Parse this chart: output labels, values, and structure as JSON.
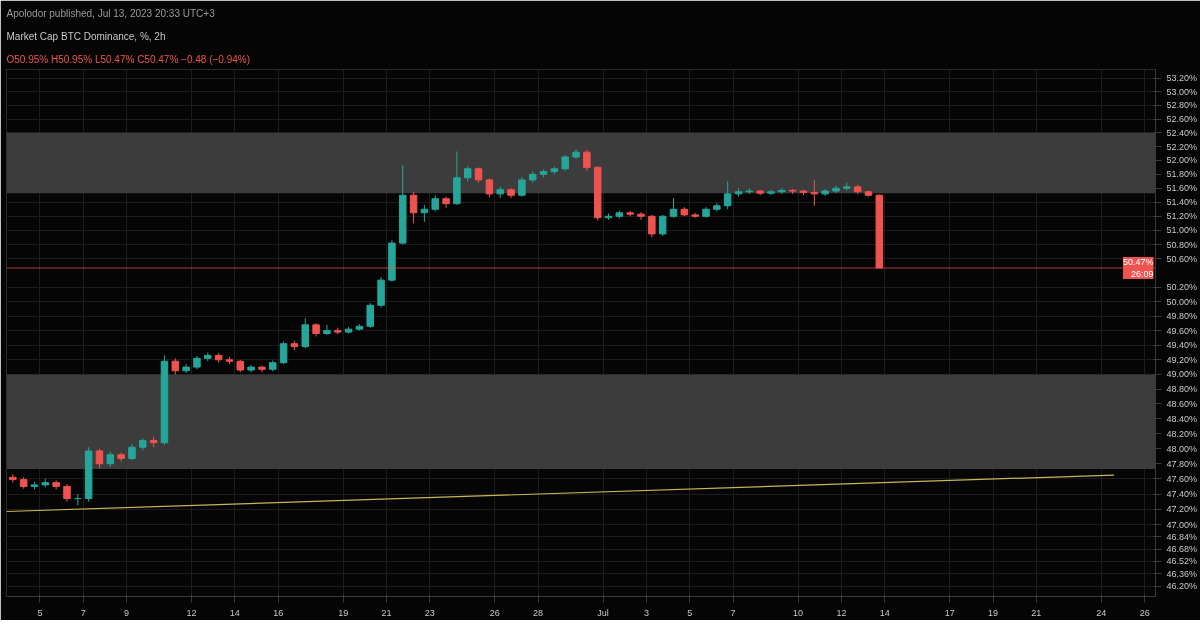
{
  "chart_data": {
    "type": "candlestick",
    "title": "Market Cap BTC Dominance, %, 2h",
    "subtitle": "O50.95% H50.95% L50.47% C50.47% −0.48 (−0.94%)",
    "annotations": [
      "Apolodor published, Jul 13, 2023 20:33 UTC+3"
    ],
    "x": [
      "2023-06-03T18:00",
      "2023-06-04T06:00",
      "2023-06-04T18:00",
      "2023-06-05T06:00",
      "2023-06-05T18:00",
      "2023-06-06T06:00",
      "2023-06-06T18:00",
      "2023-06-07T06:00",
      "2023-06-07T18:00",
      "2023-06-08T06:00",
      "2023-06-08T18:00",
      "2023-06-09T06:00",
      "2023-06-09T18:00",
      "2023-06-10T06:00",
      "2023-06-10T18:00",
      "2023-06-11T06:00",
      "2023-06-11T18:00",
      "2023-06-12T06:00",
      "2023-06-12T18:00",
      "2023-06-13T06:00",
      "2023-06-13T18:00",
      "2023-06-14T06:00",
      "2023-06-14T18:00",
      "2023-06-15T06:00",
      "2023-06-15T18:00",
      "2023-06-16T06:00",
      "2023-06-16T18:00",
      "2023-06-17T06:00",
      "2023-06-17T18:00",
      "2023-06-18T06:00",
      "2023-06-18T18:00",
      "2023-06-19T06:00",
      "2023-06-19T18:00",
      "2023-06-20T06:00",
      "2023-06-20T18:00",
      "2023-06-21T06:00",
      "2023-06-21T18:00",
      "2023-06-22T06:00",
      "2023-06-22T18:00",
      "2023-06-23T06:00",
      "2023-06-23T18:00",
      "2023-06-24T06:00",
      "2023-06-24T18:00",
      "2023-06-25T06:00",
      "2023-06-25T18:00",
      "2023-06-26T06:00",
      "2023-06-26T18:00",
      "2023-06-27T06:00",
      "2023-06-27T18:00",
      "2023-06-28T06:00",
      "2023-06-28T18:00",
      "2023-06-29T06:00",
      "2023-06-29T18:00",
      "2023-06-30T06:00",
      "2023-06-30T18:00",
      "2023-07-01T06:00",
      "2023-07-01T18:00",
      "2023-07-02T06:00",
      "2023-07-02T18:00",
      "2023-07-03T06:00",
      "2023-07-03T18:00",
      "2023-07-04T06:00",
      "2023-07-04T18:00",
      "2023-07-05T06:00",
      "2023-07-05T18:00",
      "2023-07-06T06:00",
      "2023-07-06T18:00",
      "2023-07-07T06:00",
      "2023-07-07T18:00",
      "2023-07-08T06:00",
      "2023-07-08T18:00",
      "2023-07-09T06:00",
      "2023-07-09T18:00",
      "2023-07-10T06:00",
      "2023-07-10T18:00",
      "2023-07-11T06:00",
      "2023-07-11T18:00",
      "2023-07-12T06:00",
      "2023-07-12T18:00",
      "2023-07-13T06:00",
      "2023-07-13T18:00"
    ],
    "ohlc": [
      [
        47.62,
        47.66,
        47.55,
        47.59
      ],
      [
        47.59,
        47.62,
        47.47,
        47.5
      ],
      [
        47.5,
        47.56,
        47.46,
        47.52
      ],
      [
        47.52,
        47.6,
        47.49,
        47.55
      ],
      [
        47.55,
        47.58,
        47.46,
        47.5
      ],
      [
        47.5,
        47.53,
        47.3,
        47.34
      ],
      [
        47.34,
        47.4,
        47.25,
        47.34
      ],
      [
        47.34,
        48.02,
        47.3,
        47.97
      ],
      [
        47.97,
        48.0,
        47.74,
        47.8
      ],
      [
        47.8,
        47.96,
        47.76,
        47.92
      ],
      [
        47.92,
        47.95,
        47.83,
        47.87
      ],
      [
        47.87,
        48.06,
        47.85,
        48.02
      ],
      [
        48.02,
        48.14,
        47.98,
        48.11
      ],
      [
        48.11,
        48.16,
        48.02,
        48.08
      ],
      [
        48.08,
        49.26,
        48.05,
        49.18
      ],
      [
        49.18,
        49.22,
        49.0,
        49.05
      ],
      [
        49.05,
        49.14,
        49.02,
        49.1
      ],
      [
        49.1,
        49.25,
        49.07,
        49.22
      ],
      [
        49.22,
        49.3,
        49.18,
        49.26
      ],
      [
        49.26,
        49.29,
        49.16,
        49.2
      ],
      [
        49.2,
        49.24,
        49.14,
        49.18
      ],
      [
        49.18,
        49.2,
        49.03,
        49.06
      ],
      [
        49.06,
        49.13,
        49.03,
        49.1
      ],
      [
        49.1,
        49.12,
        49.03,
        49.07
      ],
      [
        49.07,
        49.19,
        49.04,
        49.16
      ],
      [
        49.16,
        49.45,
        49.14,
        49.42
      ],
      [
        49.42,
        49.46,
        49.33,
        49.38
      ],
      [
        49.38,
        49.77,
        49.36,
        49.68
      ],
      [
        49.68,
        49.7,
        49.52,
        49.56
      ],
      [
        49.56,
        49.68,
        49.54,
        49.6
      ],
      [
        49.6,
        49.64,
        49.55,
        49.58
      ],
      [
        49.58,
        49.65,
        49.56,
        49.62
      ],
      [
        49.62,
        49.69,
        49.6,
        49.66
      ],
      [
        49.66,
        49.98,
        49.64,
        49.95
      ],
      [
        49.95,
        50.34,
        49.92,
        50.3
      ],
      [
        50.3,
        50.86,
        50.28,
        50.82
      ],
      [
        50.82,
        51.93,
        50.8,
        51.5
      ],
      [
        51.5,
        51.55,
        51.1,
        51.25
      ],
      [
        51.25,
        51.36,
        51.12,
        51.3
      ],
      [
        51.3,
        51.5,
        51.27,
        51.45
      ],
      [
        51.45,
        51.48,
        51.32,
        51.38
      ],
      [
        51.38,
        52.13,
        51.36,
        51.75
      ],
      [
        51.75,
        51.92,
        51.7,
        51.88
      ],
      [
        51.88,
        51.9,
        51.68,
        51.72
      ],
      [
        51.72,
        51.74,
        51.47,
        51.52
      ],
      [
        51.52,
        51.62,
        51.46,
        51.58
      ],
      [
        51.58,
        51.6,
        51.46,
        51.5
      ],
      [
        51.5,
        51.76,
        51.48,
        51.72
      ],
      [
        51.72,
        51.84,
        51.68,
        51.8
      ],
      [
        51.8,
        51.87,
        51.76,
        51.84
      ],
      [
        51.84,
        51.91,
        51.8,
        51.88
      ],
      [
        51.88,
        52.08,
        51.85,
        52.05
      ],
      [
        52.05,
        52.16,
        52.02,
        52.12
      ],
      [
        52.12,
        52.15,
        51.85,
        51.9
      ],
      [
        51.9,
        51.92,
        51.14,
        51.18
      ],
      [
        51.18,
        51.24,
        51.15,
        51.2
      ],
      [
        51.2,
        51.28,
        51.17,
        51.25
      ],
      [
        51.25,
        51.28,
        51.2,
        51.23
      ],
      [
        51.23,
        51.26,
        51.15,
        51.2
      ],
      [
        51.2,
        51.22,
        50.9,
        50.95
      ],
      [
        50.95,
        51.22,
        50.92,
        51.2
      ],
      [
        51.2,
        51.46,
        51.18,
        51.3
      ],
      [
        51.3,
        51.33,
        51.2,
        51.22
      ],
      [
        51.22,
        51.25,
        51.18,
        51.2
      ],
      [
        51.2,
        51.33,
        51.18,
        51.3
      ],
      [
        51.3,
        51.39,
        51.27,
        51.35
      ],
      [
        51.35,
        51.7,
        51.3,
        51.52
      ],
      [
        51.52,
        51.6,
        51.48,
        51.55
      ],
      [
        51.55,
        51.6,
        51.52,
        51.56
      ],
      [
        51.56,
        51.58,
        51.5,
        51.53
      ],
      [
        51.53,
        51.58,
        51.5,
        51.55
      ],
      [
        51.55,
        51.6,
        51.52,
        51.57
      ],
      [
        51.57,
        51.59,
        51.52,
        51.56
      ],
      [
        51.56,
        51.58,
        51.5,
        51.54
      ],
      [
        51.54,
        51.72,
        51.35,
        51.52
      ],
      [
        51.52,
        51.59,
        51.49,
        51.56
      ],
      [
        51.56,
        51.64,
        51.53,
        51.6
      ],
      [
        51.6,
        51.68,
        51.57,
        51.62
      ],
      [
        51.62,
        51.65,
        51.52,
        51.55
      ],
      [
        51.55,
        51.57,
        51.48,
        51.5
      ],
      [
        51.5,
        51.51,
        50.47,
        50.47
      ]
    ],
    "colors": [
      "#ef5350",
      "#ef5350",
      "#26a69a",
      "#26a69a",
      "#ef5350",
      "#ef5350",
      "#26a69a",
      "#26a69a",
      "#ef5350",
      "#26a69a",
      "#ef5350",
      "#26a69a",
      "#26a69a",
      "#ef5350",
      "#26a69a",
      "#ef5350",
      "#26a69a",
      "#26a69a",
      "#26a69a",
      "#ef5350",
      "#ef5350",
      "#ef5350",
      "#26a69a",
      "#ef5350",
      "#26a69a",
      "#26a69a",
      "#ef5350",
      "#26a69a",
      "#ef5350",
      "#26a69a",
      "#ef5350",
      "#26a69a",
      "#26a69a",
      "#26a69a",
      "#26a69a",
      "#26a69a",
      "#26a69a",
      "#ef5350",
      "#26a69a",
      "#26a69a",
      "#ef5350",
      "#26a69a",
      "#26a69a",
      "#ef5350",
      "#ef5350",
      "#26a69a",
      "#ef5350",
      "#26a69a",
      "#26a69a",
      "#26a69a",
      "#26a69a",
      "#26a69a",
      "#26a69a",
      "#ef5350",
      "#ef5350",
      "#26a69a",
      "#26a69a",
      "#ef5350",
      "#ef5350",
      "#ef5350",
      "#26a69a",
      "#26a69a",
      "#ef5350",
      "#ef5350",
      "#26a69a",
      "#26a69a",
      "#26a69a",
      "#26a69a",
      "#26a69a",
      "#ef5350",
      "#26a69a",
      "#26a69a",
      "#ef5350",
      "#ef5350",
      "#ef5350",
      "#26a69a",
      "#26a69a",
      "#26a69a",
      "#ef5350",
      "#ef5350",
      "#ef5350"
    ],
    "series": [
      {
        "type": "line",
        "x": [
          "2023-06-03T11:00",
          "2023-07-24T14:00"
        ],
        "values": [
          47.17,
          47.65
        ],
        "color": "#c8b45a"
      }
    ],
    "bands": [
      {
        "axis": "y",
        "from": 51.53,
        "to": 52.4,
        "color": "#3c3c3c"
      },
      {
        "axis": "y",
        "from": 47.73,
        "to": 49.0,
        "color": "#3c3c3c"
      }
    ],
    "ref_lines": [
      {
        "axis": "y",
        "value": 50.47,
        "label": "50.47%\n26:09",
        "color": "#ef5350"
      }
    ],
    "log": true,
    "grid": true,
    "xlim": [
      "2023-06-03T11:00",
      "2023-07-26T12:00"
    ],
    "xticks": [
      {
        "value": "2023-06-05",
        "label": "5"
      },
      {
        "value": "2023-06-07",
        "label": "7"
      },
      {
        "value": "2023-06-09",
        "label": "9"
      },
      {
        "value": "2023-06-12",
        "label": "12"
      },
      {
        "value": "2023-06-14",
        "label": "14"
      },
      {
        "value": "2023-06-16",
        "label": "16"
      },
      {
        "value": "2023-06-19",
        "label": "19"
      },
      {
        "value": "2023-06-21",
        "label": "21"
      },
      {
        "value": "2023-06-23",
        "label": "23"
      },
      {
        "value": "2023-06-26",
        "label": "26"
      },
      {
        "value": "2023-06-28",
        "label": "28"
      },
      {
        "value": "2023-07-01",
        "label": "Jul"
      },
      {
        "value": "2023-07-03",
        "label": "3"
      },
      {
        "value": "2023-07-05",
        "label": "5"
      },
      {
        "value": "2023-07-07",
        "label": "7"
      },
      {
        "value": "2023-07-10",
        "label": "10"
      },
      {
        "value": "2023-07-12",
        "label": "12"
      },
      {
        "value": "2023-07-14",
        "label": "14"
      },
      {
        "value": "2023-07-17",
        "label": "17"
      },
      {
        "value": "2023-07-19",
        "label": "19"
      },
      {
        "value": "2023-07-21",
        "label": "21"
      },
      {
        "value": "2023-07-24",
        "label": "24"
      },
      {
        "value": "2023-07-26",
        "label": "26"
      }
    ],
    "ylim": [
      46.07,
      53.33
    ],
    "yticks": [
      {
        "value": 53.2,
        "label": "53.20%"
      },
      {
        "value": 53.0,
        "label": "53.00%"
      },
      {
        "value": 52.8,
        "label": "52.80%"
      },
      {
        "value": 52.6,
        "label": "52.60%"
      },
      {
        "value": 52.4,
        "label": "52.40%"
      },
      {
        "value": 52.2,
        "label": "52.20%"
      },
      {
        "value": 52.0,
        "label": "52.00%"
      },
      {
        "value": 51.8,
        "label": "51.80%"
      },
      {
        "value": 51.6,
        "label": "51.60%"
      },
      {
        "value": 51.4,
        "label": "51.40%"
      },
      {
        "value": 51.2,
        "label": "51.20%"
      },
      {
        "value": 51.0,
        "label": "51.00%"
      },
      {
        "value": 50.8,
        "label": "50.80%"
      },
      {
        "value": 50.6,
        "label": "50.60%"
      },
      {
        "value": 50.2,
        "label": "50.20%"
      },
      {
        "value": 50.0,
        "label": "50.00%"
      },
      {
        "value": 49.8,
        "label": "49.80%"
      },
      {
        "value": 49.6,
        "label": "49.60%"
      },
      {
        "value": 49.4,
        "label": "49.40%"
      },
      {
        "value": 49.2,
        "label": "49.20%"
      },
      {
        "value": 49.0,
        "label": "49.00%"
      },
      {
        "value": 48.8,
        "label": "48.80%"
      },
      {
        "value": 48.6,
        "label": "48.60%"
      },
      {
        "value": 48.4,
        "label": "48.40%"
      },
      {
        "value": 48.2,
        "label": "48.20%"
      },
      {
        "value": 48.0,
        "label": "48.00%"
      },
      {
        "value": 47.8,
        "label": "47.80%"
      },
      {
        "value": 47.6,
        "label": "47.60%"
      },
      {
        "value": 47.4,
        "label": "47.40%"
      },
      {
        "value": 47.2,
        "label": "47.20%"
      },
      {
        "value": 47.0,
        "label": "47.00%"
      },
      {
        "value": 46.84,
        "label": "46.84%"
      },
      {
        "value": 46.68,
        "label": "46.68%"
      },
      {
        "value": 46.52,
        "label": "46.52%"
      },
      {
        "value": 46.36,
        "label": "46.36%"
      },
      {
        "value": 46.2,
        "label": "46.20%"
      }
    ]
  }
}
